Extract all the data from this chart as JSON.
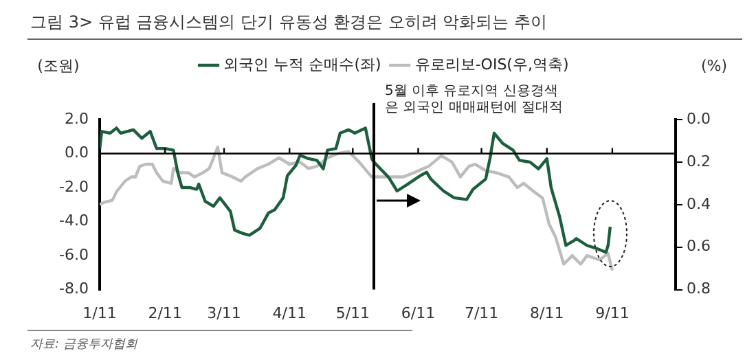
{
  "chart_data": {
    "type": "line",
    "title": "그림 3> 유럽 금융시스템의 단기 유동성 환경은 오히려 악화되는 추이",
    "ylabel": "(조원)",
    "y2label": "(%)",
    "annotations": [
      "5월 이후 유로지역 신용경색은 외국인 매매패턴에 절대적",
      "자료: 금융투자협회"
    ],
    "legend": "top",
    "xlim": [
      "--01-11",
      "--10-11"
    ],
    "xticks": [
      {
        "value": "--01-11",
        "label": "1/11"
      },
      {
        "value": "--02-11",
        "label": "2/11"
      },
      {
        "value": "--03-11",
        "label": "3/11"
      },
      {
        "value": "--04-11",
        "label": "4/11"
      },
      {
        "value": "--05-11",
        "label": "5/11"
      },
      {
        "value": "--06-11",
        "label": "6/11"
      },
      {
        "value": "--07-11",
        "label": "7/11"
      },
      {
        "value": "--08-11",
        "label": "8/11"
      },
      {
        "value": "--09-11",
        "label": "9/11"
      }
    ],
    "ylim": [
      -8,
      2
    ],
    "yticks": [
      {
        "value": -8,
        "label": "-8.0"
      },
      {
        "value": -6,
        "label": "-6.0"
      },
      {
        "value": -4,
        "label": "-4.0"
      },
      {
        "value": -2,
        "label": "-2.0"
      },
      {
        "value": 0,
        "label": "0.0"
      },
      {
        "value": 2,
        "label": "2.0"
      }
    ],
    "y2lim": [
      0.8,
      0
    ],
    "y2ticks": [
      {
        "value": 0.8,
        "label": "0.8"
      },
      {
        "value": 0.6,
        "label": "0.6"
      },
      {
        "value": 0.4,
        "label": "0.4"
      },
      {
        "value": 0.2,
        "label": "0.2"
      },
      {
        "value": 0,
        "label": "0.0"
      }
    ],
    "ref_lines": [
      {
        "axis": "y",
        "value": 0,
        "color": "#000000"
      },
      {
        "axis": "x",
        "value": "--05-21",
        "color": "#000000"
      }
    ],
    "series": [
      {
        "name": "외국인 누적 순매수(좌)",
        "color": "#1d5e3e",
        "x": [
          "--01-11",
          "--01-12",
          "--01-16",
          "--01-19",
          "--01-21",
          "--01-27",
          "--01-31",
          "--02-04",
          "--02-07",
          "--02-11",
          "--02-15",
          "--02-17",
          "--02-19",
          "--02-23",
          "--02-26",
          "--02-27",
          "--03-02",
          "--03-06",
          "--03-09",
          "--03-14",
          "--03-16",
          "--03-20",
          "--03-23",
          "--03-28",
          "--04-01",
          "--04-04",
          "--04-08",
          "--04-10",
          "--04-14",
          "--04-16",
          "--04-20",
          "--04-24",
          "--04-27",
          "--04-29",
          "--05-03",
          "--05-05",
          "--05-09",
          "--05-12",
          "--05-17",
          "--05-20",
          "--05-21",
          "--05-28",
          "--06-01",
          "--06-06",
          "--06-12",
          "--06-15",
          "--06-17",
          "--06-23",
          "--06-28",
          "--07-04",
          "--07-07",
          "--07-13",
          "--07-15",
          "--07-17",
          "--07-21",
          "--07-26",
          "--07-29",
          "--08-03",
          "--08-07",
          "--08-11",
          "--08-13",
          "--08-17",
          "--08-20",
          "--08-24",
          "--08-25",
          "--08-30",
          "--09-04",
          "--09-08",
          "--09-09",
          "--09-10"
        ],
        "values": [
          0.2,
          1.3,
          1.2,
          1.5,
          1.2,
          1.4,
          0.9,
          1.3,
          0.3,
          0.3,
          0.2,
          -1.1,
          -2.0,
          -2.0,
          -2.1,
          -1.8,
          -2.8,
          -3.1,
          -2.6,
          -3.4,
          -4.5,
          -4.7,
          -4.8,
          -4.4,
          -3.5,
          -3.3,
          -2.6,
          -1.3,
          -0.7,
          -0.1,
          -0.3,
          -0.4,
          -0.9,
          0.2,
          0.3,
          1.2,
          1.4,
          1.2,
          1.5,
          -0.3,
          -0.5,
          -1.4,
          -2.2,
          -1.8,
          -1.3,
          -1.1,
          -1.5,
          -2.2,
          -2.6,
          -2.7,
          -2.1,
          -1.5,
          -0.3,
          1.2,
          0.6,
          0.2,
          -0.4,
          -0.5,
          -0.9,
          -0.3,
          -2.0,
          -3.7,
          -5.4,
          -5.1,
          -5.0,
          -5.4,
          -5.6,
          -5.8,
          -5.4,
          -4.3
        ]
      },
      {
        "name": "유로리보-OIS(우,역축)",
        "color": "#bdbdbd",
        "axis": "y2",
        "x": [
          "--01-11",
          "--01-13",
          "--01-17",
          "--01-19",
          "--01-23",
          "--01-26",
          "--01-28",
          "--01-30",
          "--02-02",
          "--02-05",
          "--02-07",
          "--02-10",
          "--02-14",
          "--02-15",
          "--02-18",
          "--02-22",
          "--02-25",
          "--03-01",
          "--03-04",
          "--03-08",
          "--03-10",
          "--03-15",
          "--03-19",
          "--03-21",
          "--03-27",
          "--04-01",
          "--04-06",
          "--04-11",
          "--04-16",
          "--04-20",
          "--04-24",
          "--04-29",
          "--05-04",
          "--05-09",
          "--05-14",
          "--05-20",
          "--05-27",
          "--06-04",
          "--06-09",
          "--06-16",
          "--06-22",
          "--06-27",
          "--07-01",
          "--07-05",
          "--07-08",
          "--07-13",
          "--07-18",
          "--07-24",
          "--07-28",
          "--07-31",
          "--08-05",
          "--08-09",
          "--08-12",
          "--08-15",
          "--08-19",
          "--08-23",
          "--08-27",
          "--08-30",
          "--09-05",
          "--09-09",
          "--09-11"
        ],
        "values": [
          0.4,
          0.39,
          0.38,
          0.34,
          0.29,
          0.27,
          0.27,
          0.22,
          0.21,
          0.21,
          0.25,
          0.29,
          0.3,
          0.23,
          0.25,
          0.25,
          0.27,
          0.25,
          0.23,
          0.13,
          0.25,
          0.27,
          0.29,
          0.27,
          0.23,
          0.21,
          0.18,
          0.21,
          0.2,
          0.23,
          0.22,
          0.18,
          0.16,
          0.15,
          0.2,
          0.27,
          0.27,
          0.27,
          0.25,
          0.22,
          0.17,
          0.2,
          0.27,
          0.22,
          0.21,
          0.24,
          0.25,
          0.27,
          0.32,
          0.3,
          0.34,
          0.37,
          0.49,
          0.55,
          0.68,
          0.64,
          0.68,
          0.64,
          0.66,
          0.63,
          0.71
        ]
      }
    ]
  }
}
